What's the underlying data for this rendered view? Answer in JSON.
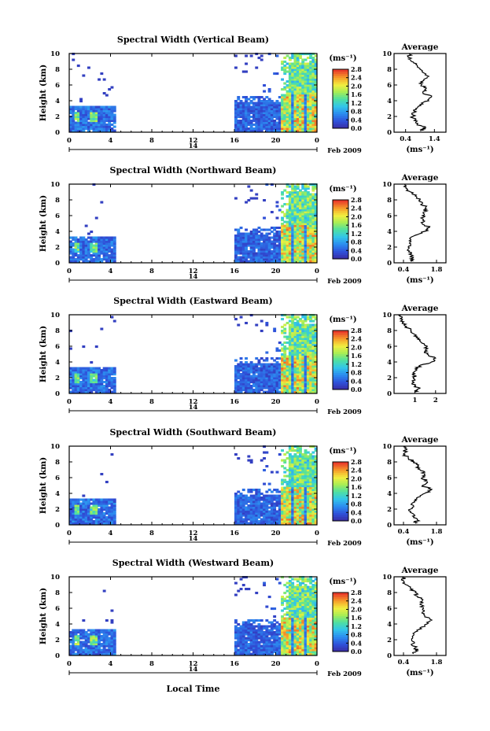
{
  "figure": {
    "x_axis_label": "Local Time",
    "date_label": "Feb 2009",
    "day_label": "14",
    "avg_title": "Average",
    "colorbar_unit": "(ms⁻¹)",
    "avg_xlabel": "(ms⁻¹)"
  },
  "chart_data": [
    {
      "type": "heatmap",
      "title": "Spectral Width (Vertical Beam)",
      "xlabel": "",
      "ylabel": "Height (km)",
      "x_ticks": [
        "0",
        "4",
        "8",
        "12",
        "16",
        "20",
        "0"
      ],
      "xlim": [
        0,
        24
      ],
      "y_ticks": [
        "0",
        "2",
        "4",
        "6",
        "8",
        "10"
      ],
      "ylim": [
        0,
        10
      ],
      "colorbar_ticks": [
        "0.0",
        "0.4",
        "0.8",
        "1.2",
        "1.6",
        "2.0",
        "2.4",
        "2.8"
      ],
      "average": {
        "title": "Average",
        "xlabel": "(ms⁻¹)",
        "x_ticks": [
          "0.4",
          "1.4"
        ],
        "xlim": [
          0,
          1.8
        ],
        "profile": [
          [
            0.9,
            0.2
          ],
          [
            1.1,
            0.6
          ],
          [
            0.8,
            1.0
          ],
          [
            0.7,
            1.5
          ],
          [
            0.65,
            2.0
          ],
          [
            0.7,
            2.5
          ],
          [
            0.75,
            3.0
          ],
          [
            0.9,
            3.5
          ],
          [
            1.2,
            4.0
          ],
          [
            1.3,
            4.5
          ],
          [
            1.0,
            5.0
          ],
          [
            1.1,
            5.5
          ],
          [
            0.95,
            6.0
          ],
          [
            1.0,
            6.5
          ],
          [
            1.15,
            7.0
          ],
          [
            1.05,
            7.5
          ],
          [
            0.9,
            8.0
          ],
          [
            0.8,
            8.5
          ],
          [
            0.6,
            9.0
          ],
          [
            0.5,
            9.5
          ],
          [
            0.55,
            10.0
          ]
        ]
      }
    },
    {
      "type": "heatmap",
      "title": "Spectral Width (Northward Beam)",
      "xlabel": "",
      "ylabel": "Height (km)",
      "x_ticks": [
        "0",
        "4",
        "8",
        "12",
        "16",
        "20",
        "0"
      ],
      "xlim": [
        0,
        24
      ],
      "y_ticks": [
        "0",
        "2",
        "4",
        "6",
        "8",
        "10"
      ],
      "ylim": [
        0,
        10
      ],
      "colorbar_ticks": [
        "0.0",
        "0.4",
        "0.8",
        "1.2",
        "1.6",
        "2.0",
        "2.4",
        "2.8"
      ],
      "average": {
        "title": "Average",
        "xlabel": "(ms⁻¹)",
        "x_ticks": [
          "0.4",
          "1.8"
        ],
        "xlim": [
          0,
          2.2
        ],
        "profile": [
          [
            0.7,
            0.2
          ],
          [
            0.8,
            0.6
          ],
          [
            0.75,
            1.0
          ],
          [
            0.65,
            1.5
          ],
          [
            0.6,
            2.0
          ],
          [
            0.65,
            2.5
          ],
          [
            0.7,
            3.0
          ],
          [
            0.9,
            3.5
          ],
          [
            1.3,
            4.0
          ],
          [
            1.5,
            4.5
          ],
          [
            1.2,
            5.0
          ],
          [
            1.25,
            5.5
          ],
          [
            1.2,
            6.0
          ],
          [
            1.3,
            6.5
          ],
          [
            1.35,
            7.0
          ],
          [
            1.2,
            7.5
          ],
          [
            1.1,
            8.0
          ],
          [
            0.9,
            8.5
          ],
          [
            0.7,
            9.0
          ],
          [
            0.5,
            9.5
          ],
          [
            0.45,
            10.0
          ]
        ]
      }
    },
    {
      "type": "heatmap",
      "title": "Spectral Width (Eastward Beam)",
      "xlabel": "",
      "ylabel": "Height (km)",
      "x_ticks": [
        "0",
        "4",
        "8",
        "12",
        "16",
        "20",
        "0"
      ],
      "xlim": [
        0,
        24
      ],
      "y_ticks": [
        "0",
        "2",
        "4",
        "6",
        "8",
        "10"
      ],
      "ylim": [
        0,
        10
      ],
      "colorbar_ticks": [
        "0.0",
        "0.4",
        "0.8",
        "1.2",
        "1.6",
        "2.0",
        "2.4",
        "2.8"
      ],
      "average": {
        "title": "Average",
        "xlabel": "",
        "x_ticks": [
          "1",
          "2"
        ],
        "xlim": [
          0,
          2.5
        ],
        "profile": [
          [
            1.0,
            0.2
          ],
          [
            1.2,
            0.6
          ],
          [
            1.0,
            1.0
          ],
          [
            0.9,
            1.5
          ],
          [
            0.95,
            2.0
          ],
          [
            1.0,
            2.5
          ],
          [
            1.1,
            3.0
          ],
          [
            1.2,
            3.5
          ],
          [
            1.8,
            4.0
          ],
          [
            2.0,
            4.5
          ],
          [
            1.6,
            5.0
          ],
          [
            1.5,
            5.5
          ],
          [
            1.6,
            6.0
          ],
          [
            1.3,
            6.5
          ],
          [
            1.2,
            7.0
          ],
          [
            1.0,
            7.5
          ],
          [
            0.8,
            8.0
          ],
          [
            0.6,
            8.5
          ],
          [
            0.4,
            9.0
          ],
          [
            0.3,
            9.5
          ],
          [
            0.35,
            10.0
          ]
        ]
      }
    },
    {
      "type": "heatmap",
      "title": "Spectral Width (Southward Beam)",
      "xlabel": "",
      "ylabel": "Height (km)",
      "x_ticks": [
        "0",
        "4",
        "8",
        "12",
        "16",
        "20",
        "0"
      ],
      "xlim": [
        0,
        24
      ],
      "y_ticks": [
        "0",
        "2",
        "4",
        "6",
        "8",
        "10"
      ],
      "ylim": [
        0,
        10
      ],
      "colorbar_ticks": [
        "0.0",
        "0.4",
        "0.8",
        "1.2",
        "1.6",
        "2.0",
        "2.4",
        "2.8"
      ],
      "average": {
        "title": "Average",
        "xlabel": "(ms⁻¹)",
        "x_ticks": [
          "0.4",
          "1.8"
        ],
        "xlim": [
          0,
          2.2
        ],
        "profile": [
          [
            0.9,
            0.2
          ],
          [
            1.0,
            0.6
          ],
          [
            0.85,
            1.0
          ],
          [
            0.75,
            1.5
          ],
          [
            0.7,
            2.0
          ],
          [
            0.8,
            2.5
          ],
          [
            0.85,
            3.0
          ],
          [
            1.0,
            3.5
          ],
          [
            1.3,
            4.0
          ],
          [
            1.6,
            4.5
          ],
          [
            1.2,
            5.0
          ],
          [
            1.4,
            5.5
          ],
          [
            1.2,
            6.0
          ],
          [
            1.3,
            6.5
          ],
          [
            1.1,
            7.0
          ],
          [
            1.0,
            7.5
          ],
          [
            0.85,
            8.0
          ],
          [
            0.6,
            8.5
          ],
          [
            0.4,
            9.0
          ],
          [
            0.5,
            9.5
          ],
          [
            0.5,
            10.0
          ]
        ]
      }
    },
    {
      "type": "heatmap",
      "title": "Spectral Width (Westward Beam)",
      "xlabel": "",
      "ylabel": "Height (km)",
      "x_ticks": [
        "0",
        "4",
        "8",
        "12",
        "16",
        "20",
        "0"
      ],
      "xlim": [
        0,
        24
      ],
      "y_ticks": [
        "0",
        "2",
        "4",
        "6",
        "8",
        "10"
      ],
      "ylim": [
        0,
        10
      ],
      "colorbar_ticks": [
        "0.0",
        "0.4",
        "0.8",
        "1.2",
        "1.6",
        "2.0",
        "2.4",
        "2.8"
      ],
      "average": {
        "title": "Average",
        "xlabel": "(ms⁻¹)",
        "x_ticks": [
          "0.4",
          "1.8"
        ],
        "xlim": [
          0,
          2.2
        ],
        "profile": [
          [
            0.8,
            0.2
          ],
          [
            1.0,
            0.6
          ],
          [
            0.9,
            1.0
          ],
          [
            0.8,
            1.5
          ],
          [
            0.75,
            2.0
          ],
          [
            0.8,
            2.5
          ],
          [
            0.9,
            3.0
          ],
          [
            1.1,
            3.5
          ],
          [
            1.4,
            4.0
          ],
          [
            1.6,
            4.5
          ],
          [
            1.3,
            5.0
          ],
          [
            1.2,
            5.5
          ],
          [
            1.25,
            6.0
          ],
          [
            1.1,
            6.5
          ],
          [
            1.2,
            7.0
          ],
          [
            1.0,
            7.5
          ],
          [
            0.9,
            8.0
          ],
          [
            0.7,
            8.5
          ],
          [
            0.5,
            9.0
          ],
          [
            0.4,
            9.5
          ],
          [
            0.4,
            10.0
          ]
        ]
      }
    }
  ]
}
